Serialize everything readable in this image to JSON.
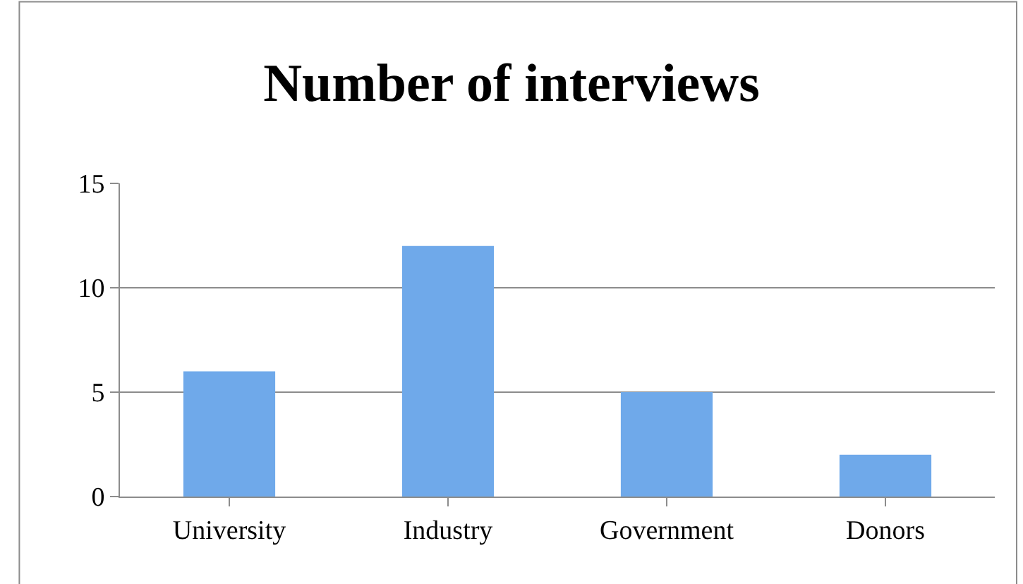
{
  "chart_data": {
    "type": "bar",
    "title": "Number of interviews",
    "categories": [
      "University",
      "Industry",
      "Government",
      "Donors"
    ],
    "values": [
      6,
      12,
      5,
      2
    ],
    "color": "#6fa9ea",
    "ylim": [
      0,
      15
    ],
    "yticks": [
      0,
      5,
      10,
      15
    ],
    "grid": "y",
    "legend": false
  }
}
